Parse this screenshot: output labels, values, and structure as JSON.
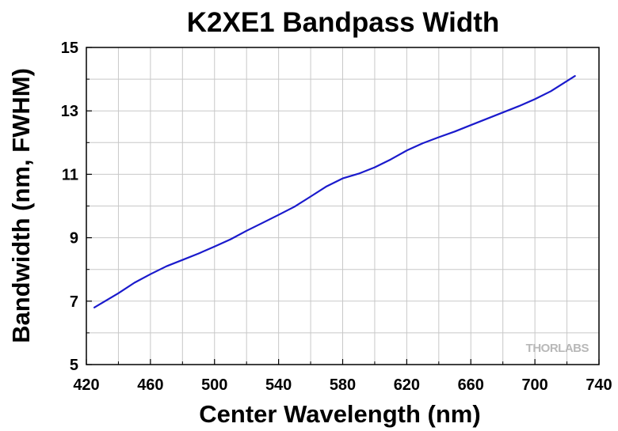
{
  "chart_data": {
    "type": "line",
    "title": "K2XE1 Bandpass Width",
    "xlabel": "Center Wavelength (nm)",
    "ylabel": "Bandwidth (nm, FWHM)",
    "xlim": [
      420,
      740
    ],
    "ylim": [
      5,
      15
    ],
    "xticks": [
      420,
      460,
      500,
      540,
      580,
      620,
      660,
      700,
      740
    ],
    "yticks": [
      5,
      7,
      9,
      11,
      13,
      15
    ],
    "grid": true,
    "line_color": "#1a1acc",
    "watermark": "THORLABS",
    "series": [
      {
        "x": [
          425,
          440,
          450,
          460,
          470,
          480,
          490,
          500,
          510,
          520,
          530,
          540,
          550,
          560,
          570,
          580,
          590,
          600,
          610,
          620,
          630,
          640,
          650,
          660,
          670,
          680,
          690,
          700,
          710,
          725
        ],
        "y": [
          6.8,
          7.25,
          7.58,
          7.85,
          8.1,
          8.3,
          8.5,
          8.72,
          8.95,
          9.22,
          9.47,
          9.72,
          9.98,
          10.3,
          10.62,
          10.87,
          11.02,
          11.22,
          11.47,
          11.75,
          11.98,
          12.17,
          12.35,
          12.55,
          12.75,
          12.95,
          13.15,
          13.37,
          13.62,
          14.1
        ]
      }
    ]
  }
}
